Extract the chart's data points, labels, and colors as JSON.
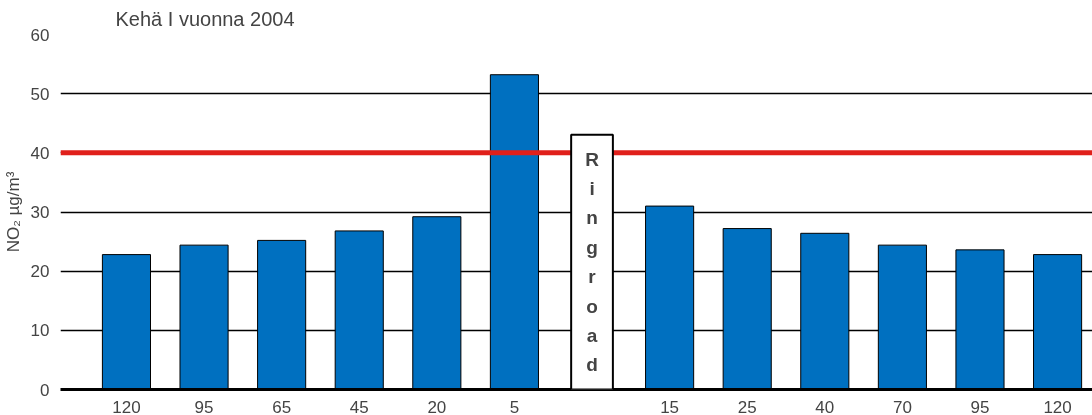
{
  "chart_data": {
    "type": "bar",
    "title": "Kehä I vuonna 2004",
    "ylabel": "NO₂ µg/m³",
    "categories": [
      "120",
      "95",
      "65",
      "45",
      "20",
      "5",
      null,
      "15",
      "25",
      "40",
      "70",
      "95",
      "120"
    ],
    "values": [
      22.8,
      24.4,
      25.2,
      26.8,
      29.2,
      53.2,
      null,
      31,
      27.2,
      26.4,
      24.4,
      23.6,
      22.8
    ],
    "color": "#0070c0",
    "ylim": [
      0,
      60
    ],
    "yticks": [
      0,
      10,
      20,
      30,
      40,
      50,
      60
    ],
    "grid": "y",
    "ref_lines": [
      {
        "axis": "y",
        "value": 40,
        "color": "#e0201b"
      }
    ],
    "annotations": [
      "Ringroad"
    ]
  }
}
